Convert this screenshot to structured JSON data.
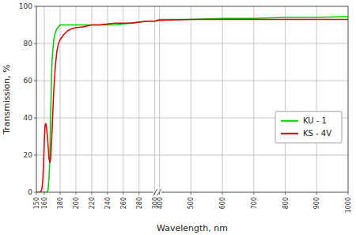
{
  "chart_data": {
    "type": "line",
    "title": "",
    "xlabel": "Wavelength, nm",
    "ylabel": "Transmission, %",
    "xlim": [
      150,
      1000
    ],
    "xticks": [
      150,
      160,
      180,
      200,
      220,
      240,
      260,
      280,
      300,
      400,
      500,
      600,
      700,
      800,
      900,
      1000
    ],
    "ylim": [
      0,
      100
    ],
    "yticks": [
      0,
      20,
      40,
      60,
      80,
      100
    ],
    "grid": true,
    "legend": "right",
    "series": [
      {
        "name": "KU - 1",
        "color": "#00cc00",
        "x": [
          150,
          152,
          154,
          156,
          158,
          160,
          161,
          162,
          163,
          164,
          165,
          166,
          167,
          168,
          169,
          170,
          172,
          174,
          176,
          178,
          180,
          185,
          190,
          195,
          200,
          210,
          220,
          230,
          240,
          250,
          260,
          270,
          280,
          290,
          300,
          400,
          500,
          600,
          700,
          800,
          900,
          1000
        ],
        "values": [
          0,
          0,
          0,
          0,
          0,
          0,
          0,
          0,
          0,
          0,
          2,
          8,
          18,
          40,
          60,
          72,
          82,
          86,
          88,
          89,
          90,
          90,
          90,
          90,
          90,
          90,
          90,
          90,
          90,
          90,
          90.5,
          91,
          91.5,
          92,
          92,
          93,
          93,
          93.5,
          93.5,
          94,
          94,
          94.5
        ]
      },
      {
        "name": "KS - 4V",
        "color": "#dd0000",
        "x": [
          150,
          152,
          153,
          154,
          155,
          156,
          157,
          158,
          159,
          160,
          161,
          162,
          163,
          164,
          165,
          166,
          167,
          168,
          169,
          170,
          172,
          174,
          176,
          178,
          180,
          185,
          190,
          195,
          200,
          210,
          220,
          230,
          240,
          250,
          260,
          270,
          280,
          290,
          300,
          400,
          500,
          600,
          700,
          800,
          900,
          1000
        ],
        "values": [
          0,
          0,
          0,
          0,
          0,
          0.5,
          2,
          6,
          15,
          27,
          36,
          37,
          34,
          30,
          24,
          18,
          16,
          18,
          25,
          34,
          55,
          68,
          76,
          80,
          82,
          85,
          87,
          88,
          88.5,
          89,
          90,
          90,
          90.5,
          91,
          91,
          91,
          91.5,
          92,
          92,
          92.5,
          93,
          93,
          93,
          93,
          93,
          93
        ]
      }
    ]
  }
}
